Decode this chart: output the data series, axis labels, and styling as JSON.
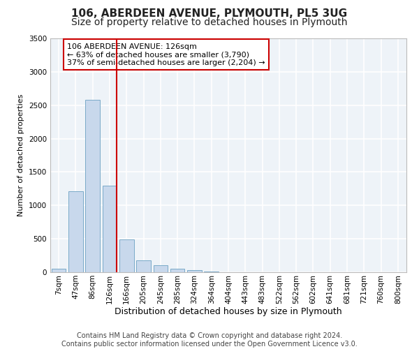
{
  "title": "106, ABERDEEN AVENUE, PLYMOUTH, PL5 3UG",
  "subtitle": "Size of property relative to detached houses in Plymouth",
  "xlabel": "Distribution of detached houses by size in Plymouth",
  "ylabel": "Number of detached properties",
  "categories": [
    "7sqm",
    "47sqm",
    "86sqm",
    "126sqm",
    "166sqm",
    "205sqm",
    "245sqm",
    "285sqm",
    "324sqm",
    "364sqm",
    "404sqm",
    "443sqm",
    "483sqm",
    "522sqm",
    "562sqm",
    "602sqm",
    "641sqm",
    "681sqm",
    "721sqm",
    "760sqm",
    "800sqm"
  ],
  "values": [
    50,
    1210,
    2580,
    1300,
    490,
    175,
    100,
    50,
    30,
    8,
    3,
    2,
    1,
    0,
    0,
    0,
    0,
    0,
    0,
    0,
    0
  ],
  "bar_color": "#c8d8ec",
  "bar_edge_color": "#7aaac8",
  "highlight_index": 3,
  "highlight_line_color": "#cc0000",
  "annotation_text": "106 ABERDEEN AVENUE: 126sqm\n← 63% of detached houses are smaller (3,790)\n37% of semi-detached houses are larger (2,204) →",
  "annotation_box_color": "#ffffff",
  "annotation_box_edge": "#cc0000",
  "ylim": [
    0,
    3500
  ],
  "yticks": [
    0,
    500,
    1000,
    1500,
    2000,
    2500,
    3000,
    3500
  ],
  "footer_line1": "Contains HM Land Registry data © Crown copyright and database right 2024.",
  "footer_line2": "Contains public sector information licensed under the Open Government Licence v3.0.",
  "bg_color": "#ffffff",
  "plot_bg_color": "#eef3f8",
  "grid_color": "#ffffff",
  "title_fontsize": 11,
  "subtitle_fontsize": 10,
  "xlabel_fontsize": 9,
  "ylabel_fontsize": 8,
  "tick_fontsize": 7.5,
  "footer_fontsize": 7
}
